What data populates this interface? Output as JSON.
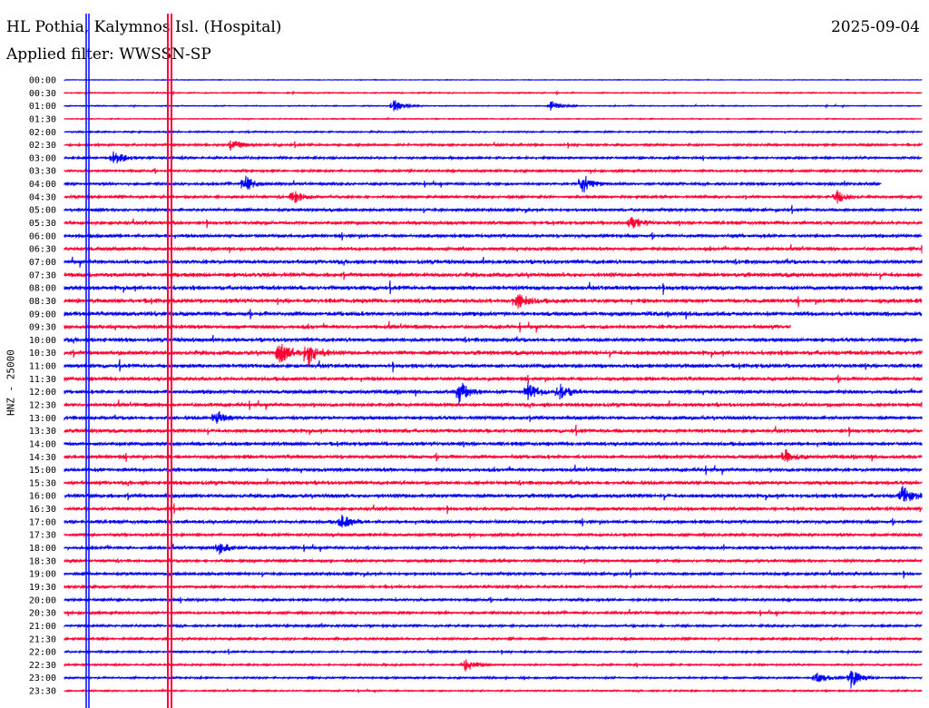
{
  "header": {
    "station": "HL Pothia, Kalymnos Isl. (Hospital)",
    "date": "2025-09-04",
    "filter": "Applied filter: WWSSN-SP"
  },
  "chart_data": {
    "type": "line",
    "title": "HL Pothia, Kalymnos Isl. (Hospital)",
    "ylabel": "HNZ - 25000",
    "xlabel": "",
    "row_minutes": 30,
    "colors": {
      "even": "#0000ff",
      "odd": "#ff0033"
    },
    "rows": [
      "00:00",
      "00:30",
      "01:00",
      "01:30",
      "02:00",
      "02:30",
      "03:00",
      "03:30",
      "04:00",
      "04:30",
      "05:00",
      "05:30",
      "06:00",
      "06:30",
      "07:00",
      "07:30",
      "08:00",
      "08:30",
      "09:00",
      "09:30",
      "10:00",
      "10:30",
      "11:00",
      "11:30",
      "12:00",
      "12:30",
      "13:00",
      "13:30",
      "14:00",
      "14:30",
      "15:00",
      "15:30",
      "16:00",
      "16:30",
      "17:00",
      "17:30",
      "18:00",
      "18:30",
      "19:00",
      "19:30",
      "20:00",
      "20:30",
      "21:00",
      "21:30",
      "22:00",
      "22:30",
      "23:00",
      "23:30"
    ],
    "noise_level": [
      0.3,
      0.6,
      0.5,
      0.5,
      0.8,
      1.2,
      1.2,
      1.3,
      1.4,
      1.4,
      1.6,
      1.8,
      1.8,
      1.8,
      2.2,
      2.4,
      2.4,
      2.4,
      2.4,
      2.2,
      2.2,
      2.4,
      2.2,
      2.0,
      2.0,
      2.0,
      2.0,
      2.0,
      2.0,
      2.0,
      2.0,
      2.0,
      2.2,
      1.8,
      1.8,
      1.6,
      1.6,
      1.6,
      1.6,
      1.4,
      1.4,
      1.4,
      1.2,
      1.2,
      1.0,
      1.0,
      1.0,
      0.8
    ],
    "events": [
      {
        "row": 2,
        "minute": 11.5,
        "amp": 8
      },
      {
        "row": 2,
        "minute": 17,
        "amp": 6
      },
      {
        "row": 6,
        "minute": 1.7,
        "amp": 10
      },
      {
        "row": 5,
        "minute": 5.8,
        "amp": 8
      },
      {
        "row": 8,
        "minute": 6.3,
        "amp": 10
      },
      {
        "row": 8,
        "minute": 18.1,
        "amp": 12
      },
      {
        "row": 9,
        "minute": 8,
        "amp": 8
      },
      {
        "row": 9,
        "minute": 27,
        "amp": 8
      },
      {
        "row": 21,
        "minute": 8.5,
        "amp": 16
      },
      {
        "row": 21,
        "minute": 7.5,
        "amp": 14
      },
      {
        "row": 24,
        "minute": 13.8,
        "amp": 14
      },
      {
        "row": 24,
        "minute": 16.2,
        "amp": 10
      },
      {
        "row": 24,
        "minute": 17.3,
        "amp": 10
      },
      {
        "row": 26,
        "minute": 5.3,
        "amp": 8
      },
      {
        "row": 32,
        "minute": 29.3,
        "amp": 10
      },
      {
        "row": 34,
        "minute": 9.7,
        "amp": 8
      },
      {
        "row": 36,
        "minute": 5.4,
        "amp": 8
      },
      {
        "row": 45,
        "minute": 14,
        "amp": 8
      },
      {
        "row": 46,
        "minute": 27.5,
        "amp": 12
      },
      {
        "row": 46,
        "minute": 26.3,
        "amp": 8
      },
      {
        "row": 17,
        "minute": 15.8,
        "amp": 10
      },
      {
        "row": 29,
        "minute": 25.2,
        "amp": 8
      },
      {
        "row": 11,
        "minute": 19.8,
        "amp": 8
      }
    ],
    "gaps": [
      {
        "row": 8,
        "from_minute": 28.6
      },
      {
        "row": 19,
        "from_minute": 25.4
      }
    ]
  }
}
